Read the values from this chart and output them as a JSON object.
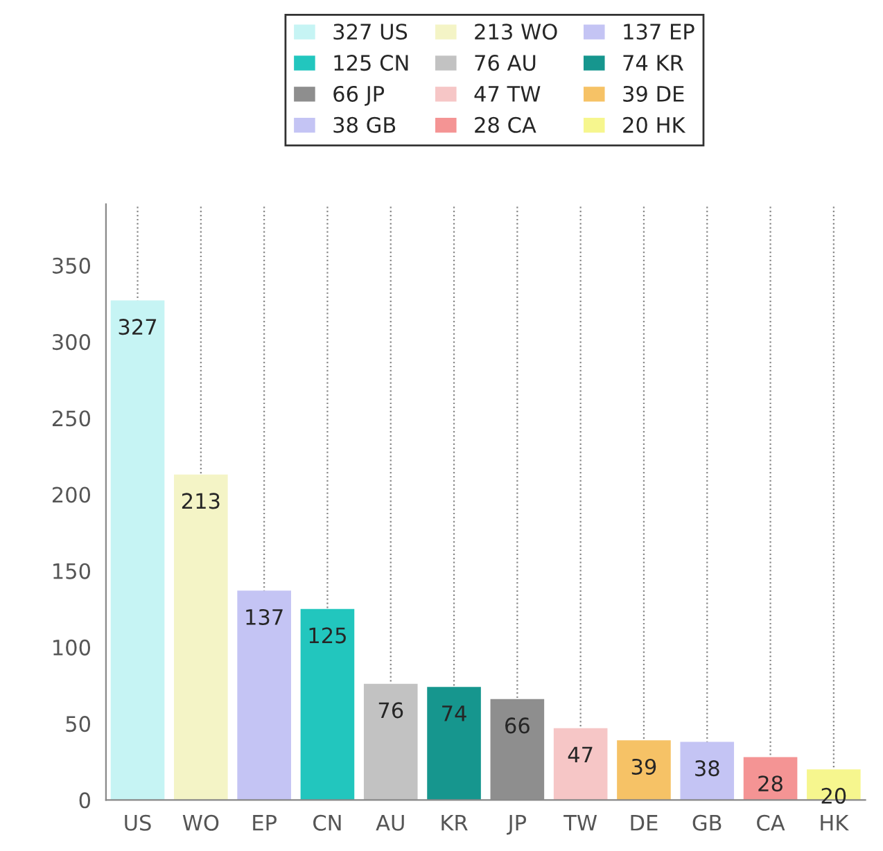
{
  "chart_data": {
    "type": "bar",
    "categories": [
      "US",
      "WO",
      "EP",
      "CN",
      "AU",
      "KR",
      "JP",
      "TW",
      "DE",
      "GB",
      "CA",
      "HK"
    ],
    "series": [
      {
        "name": "327 US",
        "color": "#c6f4f4",
        "values": [
          327,
          null,
          null,
          null,
          null,
          null,
          null,
          null,
          null,
          null,
          null,
          null
        ]
      },
      {
        "name": "213 WO",
        "color": "#f4f4c6",
        "values": [
          null,
          213,
          null,
          null,
          null,
          null,
          null,
          null,
          null,
          null,
          null,
          null
        ]
      },
      {
        "name": "137 EP",
        "color": "#c4c4f4",
        "values": [
          null,
          null,
          137,
          null,
          null,
          null,
          null,
          null,
          null,
          null,
          null,
          null
        ]
      },
      {
        "name": "125 CN",
        "color": "#22c6be",
        "values": [
          null,
          null,
          null,
          125,
          null,
          null,
          null,
          null,
          null,
          null,
          null,
          null
        ]
      },
      {
        "name": "76 AU",
        "color": "#c2c2c2",
        "values": [
          null,
          null,
          null,
          null,
          76,
          null,
          null,
          null,
          null,
          null,
          null,
          null
        ]
      },
      {
        "name": "74 KR",
        "color": "#16968e",
        "values": [
          null,
          null,
          null,
          null,
          null,
          74,
          null,
          null,
          null,
          null,
          null,
          null
        ]
      },
      {
        "name": "66 JP",
        "color": "#8e8e8e",
        "values": [
          null,
          null,
          null,
          null,
          null,
          null,
          66,
          null,
          null,
          null,
          null,
          null
        ]
      },
      {
        "name": "47 TW",
        "color": "#f6c6c6",
        "values": [
          null,
          null,
          null,
          null,
          null,
          null,
          null,
          47,
          null,
          null,
          null,
          null
        ]
      },
      {
        "name": "39 DE",
        "color": "#f6c266",
        "values": [
          null,
          null,
          null,
          null,
          null,
          null,
          null,
          null,
          39,
          null,
          null,
          null
        ]
      },
      {
        "name": "38 GB",
        "color": "#c4c4f4",
        "values": [
          null,
          null,
          null,
          null,
          null,
          null,
          null,
          null,
          null,
          38,
          null,
          null
        ]
      },
      {
        "name": "28 CA",
        "color": "#f49494",
        "values": [
          null,
          null,
          null,
          null,
          null,
          null,
          null,
          null,
          null,
          null,
          28,
          null
        ]
      },
      {
        "name": "20 HK",
        "color": "#f6f68e",
        "values": [
          null,
          null,
          null,
          null,
          null,
          null,
          null,
          null,
          null,
          null,
          null,
          20
        ]
      }
    ],
    "ylim": [
      0,
      390
    ],
    "yticks": [
      0,
      50,
      100,
      150,
      200,
      250,
      300,
      350
    ],
    "grid": "x",
    "legend": "top",
    "data_labels": true
  }
}
